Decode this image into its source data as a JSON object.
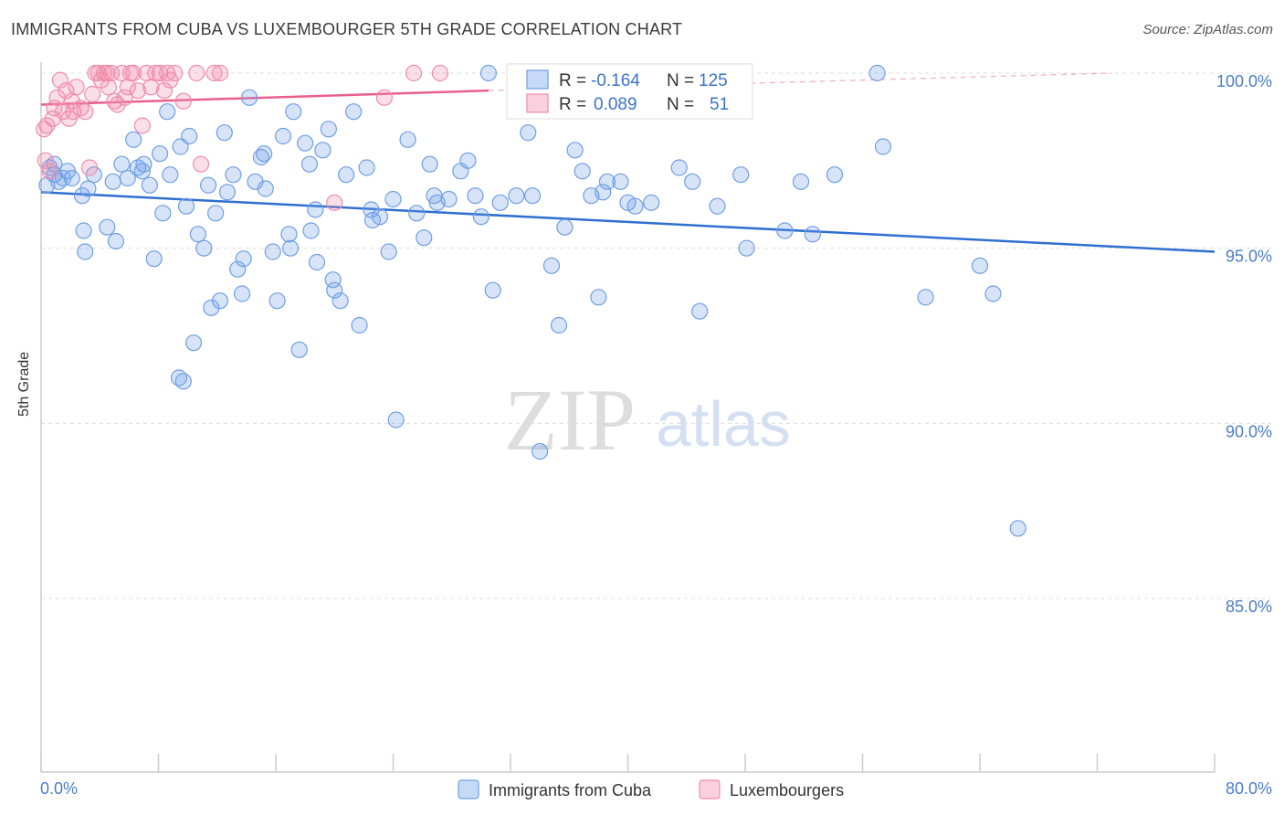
{
  "header": {
    "title": "IMMIGRANTS FROM CUBA VS LUXEMBOURGER 5TH GRADE CORRELATION CHART",
    "source": "Source: ZipAtlas.com"
  },
  "watermark": {
    "zip": "ZIP",
    "atlas": "atlas"
  },
  "stats_box": {
    "rows": [
      {
        "r_label": "R =",
        "r_value": "-0.164",
        "n_label": "N =",
        "n_value": "125",
        "color": "#6f9ee6"
      },
      {
        "r_label": "R =",
        "r_value": "0.089",
        "n_label": "N =",
        "n_value": "51",
        "color": "#f08bab"
      }
    ]
  },
  "legend": {
    "items": [
      {
        "label": "Immigrants from Cuba",
        "color": "#6f9ee6"
      },
      {
        "label": "Luxembourgers",
        "color": "#f08bab"
      }
    ]
  },
  "chart_data": {
    "type": "scatter",
    "title": "IMMIGRANTS FROM CUBA VS LUXEMBOURGER 5TH GRADE CORRELATION CHART",
    "xlabel": "",
    "ylabel": "5th Grade",
    "xlim": [
      0,
      80
    ],
    "ylim": [
      80,
      100
    ],
    "x_tick_labels": [
      "0.0%",
      "80.0%"
    ],
    "y_ticks": [
      85,
      90,
      95,
      100
    ],
    "y_tick_labels": [
      "85.0%",
      "90.0%",
      "95.0%",
      "100.0%"
    ],
    "grid": true,
    "series": [
      {
        "name": "Immigrants from Cuba",
        "color": "#6f9ee6",
        "r": -0.164,
        "n": 125,
        "trend": {
          "x": [
            0,
            80
          ],
          "y": [
            96.6,
            94.9
          ]
        },
        "points": [
          [
            0.4,
            96.8
          ],
          [
            0.6,
            97.3
          ],
          [
            0.9,
            97.1
          ],
          [
            1.2,
            96.9
          ],
          [
            1.8,
            97.2
          ],
          [
            2.1,
            97.0
          ],
          [
            2.8,
            96.5
          ],
          [
            3.2,
            96.7
          ],
          [
            3.0,
            94.9
          ],
          [
            2.9,
            95.5
          ],
          [
            4.5,
            95.6
          ],
          [
            5.1,
            95.2
          ],
          [
            4.9,
            96.9
          ],
          [
            5.5,
            97.4
          ],
          [
            5.9,
            97.0
          ],
          [
            6.3,
            98.1
          ],
          [
            6.6,
            97.3
          ],
          [
            7.0,
            97.4
          ],
          [
            7.4,
            96.8
          ],
          [
            7.7,
            94.7
          ],
          [
            8.1,
            97.7
          ],
          [
            8.3,
            96.0
          ],
          [
            8.6,
            98.9
          ],
          [
            8.8,
            97.1
          ],
          [
            9.5,
            97.9
          ],
          [
            9.9,
            96.2
          ],
          [
            10.1,
            98.2
          ],
          [
            10.4,
            92.3
          ],
          [
            10.7,
            95.4
          ],
          [
            11.1,
            95.0
          ],
          [
            11.6,
            93.3
          ],
          [
            11.9,
            96.0
          ],
          [
            12.2,
            93.5
          ],
          [
            12.7,
            96.6
          ],
          [
            13.1,
            97.1
          ],
          [
            13.4,
            94.4
          ],
          [
            13.7,
            93.7
          ],
          [
            14.2,
            99.3
          ],
          [
            14.6,
            96.9
          ],
          [
            15.0,
            97.6
          ],
          [
            15.3,
            96.7
          ],
          [
            15.8,
            94.9
          ],
          [
            16.1,
            93.5
          ],
          [
            16.5,
            98.2
          ],
          [
            16.9,
            95.4
          ],
          [
            17.2,
            98.9
          ],
          [
            17.6,
            92.1
          ],
          [
            18.0,
            98.0
          ],
          [
            18.3,
            97.4
          ],
          [
            18.7,
            96.1
          ],
          [
            18.8,
            94.6
          ],
          [
            19.2,
            97.8
          ],
          [
            19.6,
            98.4
          ],
          [
            20.0,
            93.8
          ],
          [
            20.4,
            93.5
          ],
          [
            20.8,
            97.1
          ],
          [
            21.3,
            98.9
          ],
          [
            21.7,
            92.8
          ],
          [
            22.2,
            97.3
          ],
          [
            22.6,
            95.8
          ],
          [
            23.1,
            95.9
          ],
          [
            23.7,
            94.9
          ],
          [
            24.2,
            90.1
          ],
          [
            25.0,
            98.1
          ],
          [
            25.6,
            96.0
          ],
          [
            26.1,
            95.3
          ],
          [
            26.5,
            97.4
          ],
          [
            27.0,
            96.3
          ],
          [
            27.8,
            96.4
          ],
          [
            28.6,
            97.2
          ],
          [
            29.1,
            97.5
          ],
          [
            30.0,
            95.9
          ],
          [
            30.8,
            93.8
          ],
          [
            31.3,
            96.3
          ],
          [
            32.4,
            96.5
          ],
          [
            33.2,
            98.3
          ],
          [
            33.5,
            96.5
          ],
          [
            34.0,
            89.2
          ],
          [
            34.8,
            94.5
          ],
          [
            35.3,
            92.8
          ],
          [
            36.4,
            97.8
          ],
          [
            36.9,
            97.2
          ],
          [
            37.5,
            96.5
          ],
          [
            38.0,
            93.6
          ],
          [
            38.3,
            96.6
          ],
          [
            38.6,
            96.9
          ],
          [
            39.5,
            96.9
          ],
          [
            40.0,
            96.3
          ],
          [
            40.5,
            96.2
          ],
          [
            41.6,
            96.3
          ],
          [
            43.5,
            97.3
          ],
          [
            44.4,
            96.9
          ],
          [
            44.9,
            93.2
          ],
          [
            46.1,
            96.2
          ],
          [
            47.7,
            97.1
          ],
          [
            48.1,
            95.0
          ],
          [
            50.7,
            95.5
          ],
          [
            51.8,
            96.9
          ],
          [
            52.6,
            95.4
          ],
          [
            54.1,
            97.1
          ],
          [
            57.0,
            100.0
          ],
          [
            57.4,
            97.9
          ],
          [
            60.3,
            93.6
          ],
          [
            64.0,
            94.5
          ],
          [
            64.9,
            93.7
          ],
          [
            66.6,
            87.0
          ],
          [
            9.4,
            91.3
          ],
          [
            9.7,
            91.2
          ],
          [
            30.5,
            100.0
          ],
          [
            18.4,
            95.5
          ],
          [
            26.8,
            96.5
          ],
          [
            13.8,
            94.7
          ],
          [
            22.5,
            96.1
          ],
          [
            11.4,
            96.8
          ],
          [
            29.6,
            96.5
          ],
          [
            1.5,
            97.0
          ],
          [
            0.9,
            97.4
          ],
          [
            3.6,
            97.1
          ],
          [
            6.9,
            97.2
          ],
          [
            15.2,
            97.7
          ],
          [
            17.0,
            95.0
          ],
          [
            24.0,
            96.4
          ],
          [
            35.7,
            95.6
          ],
          [
            19.9,
            94.1
          ],
          [
            12.5,
            98.3
          ]
        ]
      },
      {
        "name": "Luxembourgers",
        "color": "#f08bab",
        "r": 0.089,
        "n": 51,
        "trend": {
          "x": [
            0,
            30.5
          ],
          "y": [
            99.1,
            99.5
          ]
        },
        "trend_extension": {
          "x": [
            30.5,
            73
          ],
          "y": [
            99.5,
            100.0
          ]
        },
        "points": [
          [
            0.3,
            97.5
          ],
          [
            0.4,
            98.5
          ],
          [
            0.6,
            97.2
          ],
          [
            0.8,
            98.7
          ],
          [
            0.9,
            99.0
          ],
          [
            1.1,
            99.3
          ],
          [
            1.3,
            99.8
          ],
          [
            1.5,
            98.9
          ],
          [
            1.7,
            99.5
          ],
          [
            1.9,
            98.7
          ],
          [
            2.1,
            99.2
          ],
          [
            2.4,
            99.6
          ],
          [
            2.7,
            99.0
          ],
          [
            3.0,
            98.9
          ],
          [
            3.3,
            97.3
          ],
          [
            3.5,
            99.4
          ],
          [
            3.7,
            100.0
          ],
          [
            3.9,
            100.0
          ],
          [
            4.1,
            99.8
          ],
          [
            4.3,
            100.0
          ],
          [
            4.5,
            100.0
          ],
          [
            4.6,
            99.6
          ],
          [
            4.8,
            100.0
          ],
          [
            5.0,
            99.2
          ],
          [
            5.2,
            99.1
          ],
          [
            5.5,
            100.0
          ],
          [
            5.7,
            99.3
          ],
          [
            5.9,
            99.6
          ],
          [
            6.1,
            100.0
          ],
          [
            6.3,
            100.0
          ],
          [
            6.6,
            99.5
          ],
          [
            6.9,
            98.5
          ],
          [
            7.2,
            100.0
          ],
          [
            7.5,
            99.6
          ],
          [
            7.8,
            100.0
          ],
          [
            8.1,
            100.0
          ],
          [
            8.4,
            99.5
          ],
          [
            8.6,
            100.0
          ],
          [
            8.8,
            99.8
          ],
          [
            9.1,
            100.0
          ],
          [
            9.7,
            99.2
          ],
          [
            10.6,
            100.0
          ],
          [
            10.9,
            97.4
          ],
          [
            11.8,
            100.0
          ],
          [
            12.2,
            100.0
          ],
          [
            20.0,
            96.3
          ],
          [
            23.4,
            99.3
          ],
          [
            25.4,
            100.0
          ],
          [
            27.2,
            100.0
          ],
          [
            0.2,
            98.4
          ],
          [
            2.2,
            98.9
          ]
        ]
      }
    ]
  }
}
